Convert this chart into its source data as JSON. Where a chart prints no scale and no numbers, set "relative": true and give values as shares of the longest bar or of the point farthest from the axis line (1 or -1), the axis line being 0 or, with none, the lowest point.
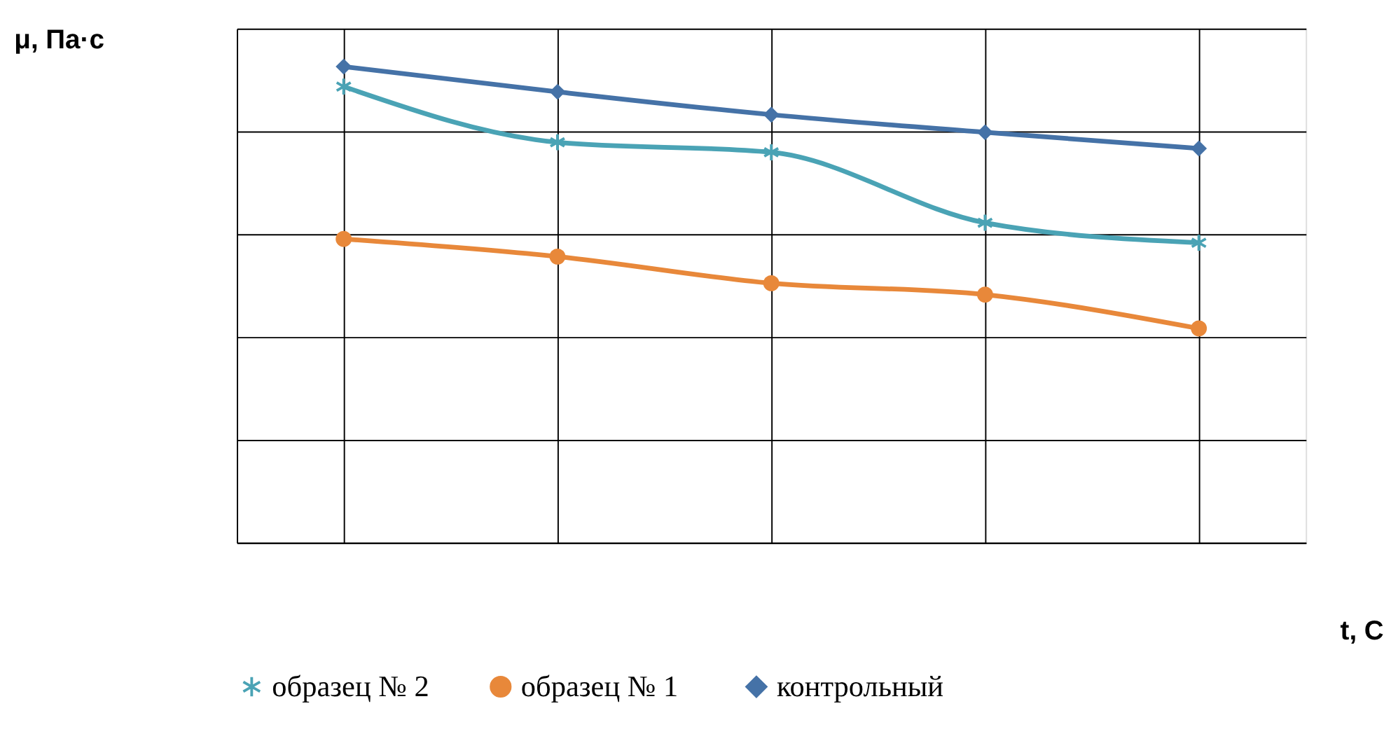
{
  "chart_data": {
    "type": "line",
    "relative": true,
    "xlabel": "t, С",
    "ylabel": "μ, Па·с",
    "categories": [
      null,
      null,
      null,
      null,
      null
    ],
    "series": [
      {
        "name": "образец № 2",
        "color": "#4aa3b5",
        "marker": "cross",
        "values": [
          0.958,
          0.841,
          0.82,
          0.672,
          0.63
        ]
      },
      {
        "name": "образец  № 1",
        "color": "#e8883a",
        "marker": "circle",
        "values": [
          0.638,
          0.601,
          0.545,
          0.521,
          0.45
        ]
      },
      {
        "name": "контрольный",
        "color": "#4572a7",
        "marker": "diamond",
        "values": [
          1.0,
          0.947,
          0.899,
          0.862,
          0.828
        ]
      }
    ],
    "grid": true,
    "legend": "bottom",
    "tick_labels": false
  }
}
